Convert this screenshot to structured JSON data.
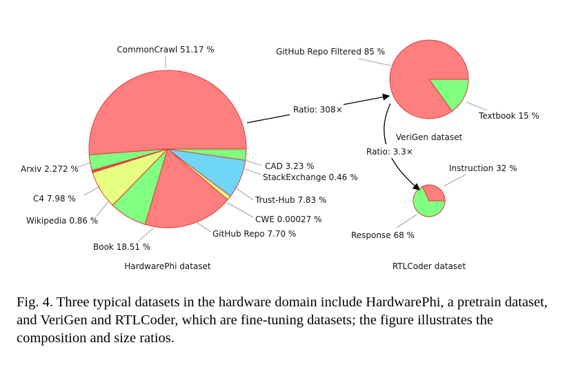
{
  "chart_data": [
    {
      "type": "pie",
      "title": "HardwarePhi dataset",
      "slices": [
        {
          "label": "CommonCrawl",
          "value_text": "51.17 %",
          "value": 51.17,
          "color": "#ff7f7f"
        },
        {
          "label": "CAD",
          "value_text": "3.23 %",
          "value": 3.23,
          "color": "#80ff80"
        },
        {
          "label": "StackExchange",
          "value_text": "0.46 %",
          "value": 0.46,
          "color": "#e04b4b"
        },
        {
          "label": "Trust-Hub",
          "value_text": "7.83 %",
          "value": 7.83,
          "color": "#e6ff80"
        },
        {
          "label": "CWE",
          "value_text": "0.00027 %",
          "value": 0.00027,
          "color": "#ffb060"
        },
        {
          "label": "GitHub Repo",
          "value_text": "7.70 %",
          "value": 7.7,
          "color": "#80ff80"
        },
        {
          "label": "Book",
          "value_text": "18.51 %",
          "value": 18.51,
          "color": "#ff7f7f"
        },
        {
          "label": "Wikipedia",
          "value_text": "0.86 %",
          "value": 0.86,
          "color": "#e6ff80"
        },
        {
          "label": "C4",
          "value_text": "7.98 %",
          "value": 7.98,
          "color": "#6fd6f5"
        },
        {
          "label": "Arxiv",
          "value_text": "2.272 %",
          "value": 2.272,
          "color": "#80ff80"
        }
      ]
    },
    {
      "type": "pie",
      "title": "VeriGen dataset",
      "slices": [
        {
          "label": "GitHub Repo Filtered",
          "value_text": "85 %",
          "value": 85,
          "color": "#ff7f7f"
        },
        {
          "label": "Textbook",
          "value_text": "15 %",
          "value": 15,
          "color": "#80ff80"
        }
      ]
    },
    {
      "type": "pie",
      "title": "RTLCoder dataset",
      "slices": [
        {
          "label": "Instruction",
          "value_text": "32 %",
          "value": 32,
          "color": "#ff7f7f"
        },
        {
          "label": "Response",
          "value_text": "68 %",
          "value": 68,
          "color": "#80ff80"
        }
      ]
    }
  ],
  "ratios": [
    {
      "label": "Ratio: 308×"
    },
    {
      "label": "Ratio: 3.3×"
    }
  ],
  "caption": "Fig. 4.  Three typical datasets in the hardware domain include HardwarePhi, a pretrain dataset, and VeriGen and RTLCoder, which are fine-tuning datasets; the figure illustrates the composition and size ratios."
}
